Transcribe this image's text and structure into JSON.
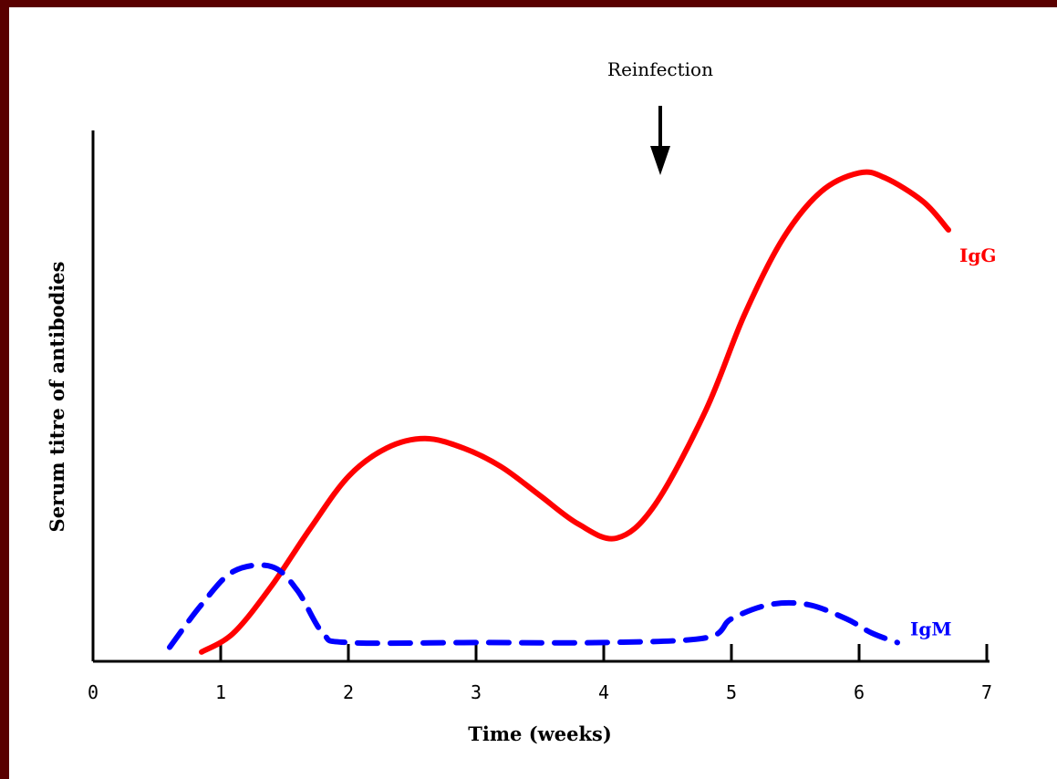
{
  "chart_data": {
    "type": "line",
    "title": "",
    "xlabel": "Time (weeks)",
    "ylabel": "Serum titre of antibodies",
    "xlim": [
      0,
      7
    ],
    "x_ticks": [
      "0",
      "1",
      "2",
      "3",
      "4",
      "5",
      "6",
      "7"
    ],
    "y_ticks": [],
    "grid": false,
    "legend": "none",
    "series": [
      {
        "name": "IgG",
        "color": "#ff0000",
        "style": "solid",
        "points": [
          [
            0.85,
            0.01
          ],
          [
            1.1,
            0.05
          ],
          [
            1.4,
            0.15
          ],
          [
            1.7,
            0.27
          ],
          [
            2.0,
            0.38
          ],
          [
            2.3,
            0.44
          ],
          [
            2.6,
            0.46
          ],
          [
            2.9,
            0.44
          ],
          [
            3.2,
            0.4
          ],
          [
            3.5,
            0.34
          ],
          [
            3.8,
            0.28
          ],
          [
            4.1,
            0.25
          ],
          [
            4.4,
            0.32
          ],
          [
            4.8,
            0.52
          ],
          [
            5.1,
            0.72
          ],
          [
            5.4,
            0.88
          ],
          [
            5.7,
            0.98
          ],
          [
            6.0,
            1.02
          ],
          [
            6.2,
            1.01
          ],
          [
            6.5,
            0.96
          ],
          [
            6.7,
            0.9
          ]
        ]
      },
      {
        "name": "IgM",
        "color": "#0000ff",
        "style": "dashed",
        "points": [
          [
            0.6,
            0.02
          ],
          [
            0.85,
            0.11
          ],
          [
            1.1,
            0.18
          ],
          [
            1.4,
            0.19
          ],
          [
            1.6,
            0.14
          ],
          [
            1.8,
            0.05
          ],
          [
            2.0,
            0.03
          ],
          [
            3.0,
            0.03
          ],
          [
            4.0,
            0.03
          ],
          [
            4.8,
            0.04
          ],
          [
            5.0,
            0.08
          ],
          [
            5.3,
            0.11
          ],
          [
            5.6,
            0.11
          ],
          [
            5.9,
            0.08
          ],
          [
            6.1,
            0.05
          ],
          [
            6.3,
            0.03
          ]
        ]
      }
    ],
    "annotations": [
      {
        "text": "Reinfection",
        "x": 4.45,
        "arrow": "down"
      }
    ]
  }
}
